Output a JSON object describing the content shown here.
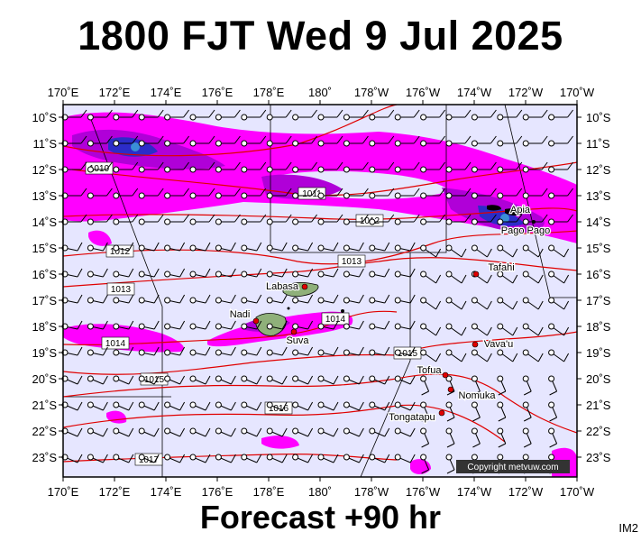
{
  "title": "1800 FJT Wed 9 Jul 2025",
  "subtitle": "Forecast +90 hr",
  "map_id": "IM2",
  "copyright": "Copyright metvuw.com",
  "colors": {
    "background": "#e6e6ff",
    "rain_light": "#ff00ff",
    "rain_mid": "#b000d8",
    "rain_heavy": "#2c2cc8",
    "rain_extreme": "#3a8fd6",
    "isobar": "#e00000",
    "land": "#8fb07a",
    "boundary": "#000000"
  },
  "lon_labels": [
    "170˚E",
    "172˚E",
    "174˚E",
    "176˚E",
    "178˚E",
    "180˚",
    "178˚W",
    "176˚W",
    "174˚W",
    "172˚W",
    "170˚W"
  ],
  "lat_labels": [
    "10˚S",
    "11˚S",
    "12˚S",
    "13˚S",
    "14˚S",
    "15˚S",
    "16˚S",
    "17˚S",
    "18˚S",
    "19˚S",
    "20˚S",
    "21˚S",
    "22˚S",
    "23˚S"
  ],
  "isobar_labels": [
    "1010",
    "1011",
    "1012",
    "1012",
    "1013",
    "1013",
    "1014",
    "1014",
    "1015",
    "1015",
    "1016",
    "1017"
  ],
  "places": [
    "Apia",
    "Pago Pago",
    "Tafahi",
    "Labasa",
    "Nadi",
    "Suva",
    "Vava'u",
    "Tofua",
    "Nomuka",
    "Tongatapu"
  ]
}
